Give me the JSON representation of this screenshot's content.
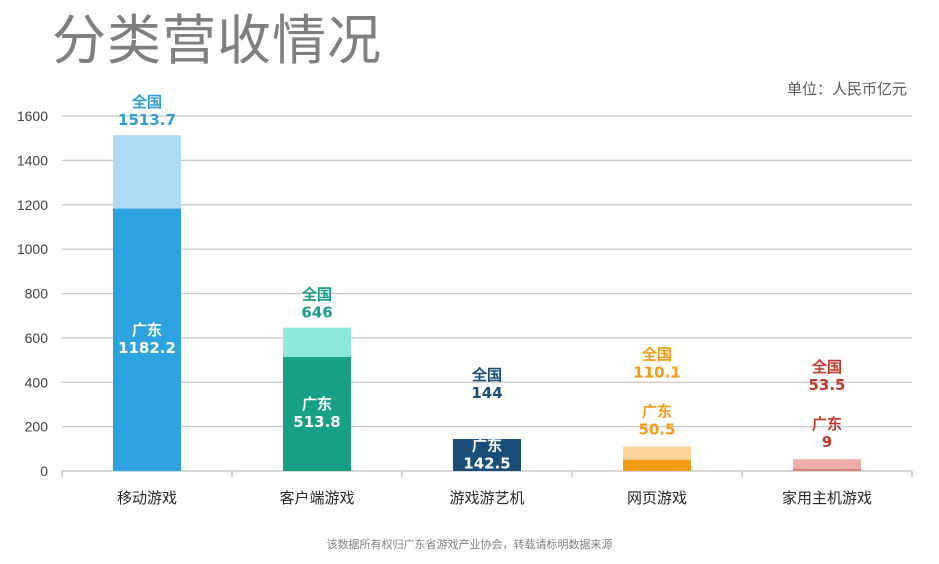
{
  "page": {
    "title": "分类营收情况",
    "unit": "单位：人民币亿元",
    "footer": "该数据所有权归广东省游戏产业协会，转载请标明数据来源"
  },
  "chart_data": {
    "type": "bar",
    "title": "分类营收情况",
    "ylabel": "单位：人民币亿元",
    "ylim": [
      0,
      1600
    ],
    "yticks": [
      0,
      200,
      400,
      600,
      800,
      1000,
      1200,
      1400,
      1600
    ],
    "categories": [
      "移动游戏",
      "客户端游戏",
      "游戏游艺机",
      "网页游戏",
      "家用主机游戏"
    ],
    "series": [
      {
        "name": "全国",
        "values": [
          1513.7,
          646,
          144,
          110.1,
          53.5
        ],
        "labels": [
          "1513.7",
          "646",
          "144",
          "110.1",
          "53.5"
        ]
      },
      {
        "name": "广东",
        "values": [
          1182.2,
          513.8,
          142.5,
          50.5,
          9
        ],
        "labels": [
          "1182.2",
          "513.8",
          "142.5",
          "50.5",
          "9"
        ]
      }
    ],
    "colors": {
      "national": [
        "#addaf3",
        "#8ee8d8",
        "#1a4e7a",
        "#fdd599",
        "#f0aeaa"
      ],
      "guangdong": [
        "#2da3df",
        "#17a083",
        "#1a4e7a",
        "#f29c16",
        "#e0807b"
      ],
      "national_label": [
        "#2e9fd6",
        "#16a085",
        "#1a4e7a",
        "#f39c12",
        "#c0392b"
      ],
      "guangdong_label": [
        "#ffffff",
        "#ffffff",
        "#ffffff",
        "#f39c12",
        "#c0392b"
      ]
    }
  }
}
